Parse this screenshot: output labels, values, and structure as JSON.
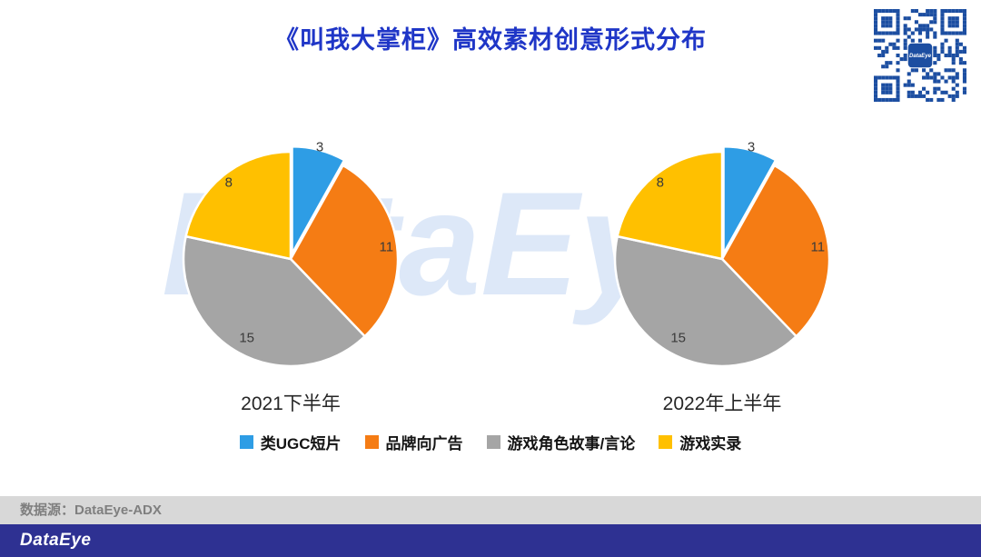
{
  "page": {
    "title": "《叫我大掌柜》高效素材创意形式分布"
  },
  "watermark": "DataEye",
  "qr": {
    "logo_text": "DataEye",
    "color": "#1C4EA1"
  },
  "colors": {
    "title_blue": "#1F36C7",
    "footer_blue": "#2E3192",
    "source_bar_gray": "#D8D8D8",
    "slice_blue": "#2E9DE5",
    "slice_orange": "#F57C14",
    "slice_gray": "#A5A5A5",
    "slice_yellow": "#FFC000"
  },
  "legend": [
    {
      "label": "类UGC短片",
      "color": "#2E9DE5"
    },
    {
      "label": "品牌向广告",
      "color": "#F57C14"
    },
    {
      "label": "游戏角色故事/言论",
      "color": "#A5A5A5"
    },
    {
      "label": "游戏实录",
      "color": "#FFC000"
    }
  ],
  "chart_data": [
    {
      "type": "pie",
      "title": "2021下半年",
      "categories": [
        "类UGC短片",
        "品牌向广告",
        "游戏角色故事/言论",
        "游戏实录"
      ],
      "values": [
        3,
        11,
        15,
        8
      ],
      "colors": [
        "#2E9DE5",
        "#F57C14",
        "#A5A5A5",
        "#FFC000"
      ],
      "start_angle_deg": 0,
      "direction": "clockwise",
      "data_labels": true,
      "legend_position": "bottom-shared"
    },
    {
      "type": "pie",
      "title": "2022年上半年",
      "categories": [
        "类UGC短片",
        "品牌向广告",
        "游戏角色故事/言论",
        "游戏实录"
      ],
      "values": [
        3,
        11,
        15,
        8
      ],
      "colors": [
        "#2E9DE5",
        "#F57C14",
        "#A5A5A5",
        "#FFC000"
      ],
      "start_angle_deg": 0,
      "direction": "clockwise",
      "data_labels": true,
      "legend_position": "bottom-shared"
    }
  ],
  "source_bar": {
    "text": "数据源：DataEye-ADX"
  },
  "footer": {
    "logo_text": "DataEye"
  }
}
